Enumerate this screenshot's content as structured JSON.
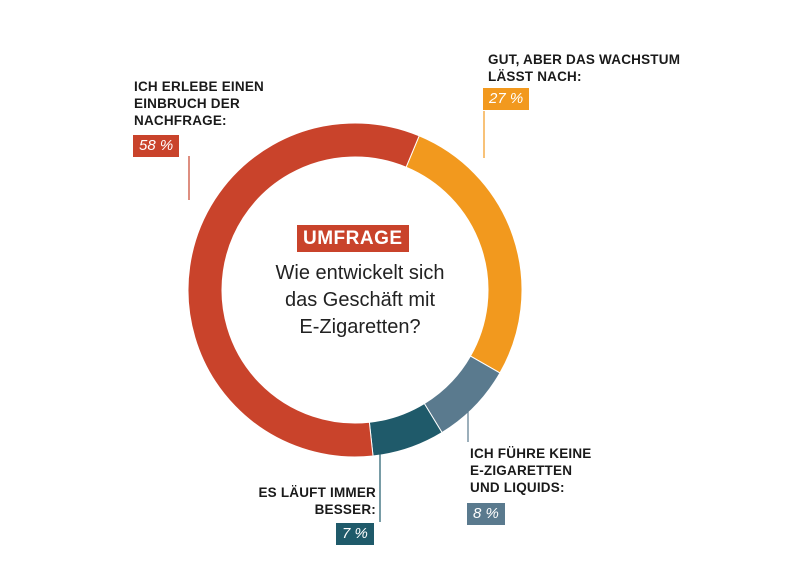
{
  "center": {
    "badge": "UMFRAGE",
    "question_lines": [
      "Wie entwickelt sich",
      "das Geschäft mit",
      "E-Zigaretten?"
    ]
  },
  "chart_data": {
    "type": "pie",
    "variant": "donut",
    "title": "UMFRAGE",
    "subtitle": "Wie entwickelt sich das Geschäft mit E-Zigaretten?",
    "categories": [
      "Gut, aber das Wachstum lässt nach:",
      "Ich führe keine E-Zigaretten und Liquids:",
      "Es läuft immer besser:",
      "Ich erlebe einen Einbruch der Nachfrage:"
    ],
    "values": [
      27,
      8,
      7,
      58
    ],
    "unit": "%",
    "colors": [
      "#f2991e",
      "#5a7a8e",
      "#1f5a6a",
      "#c9432b"
    ],
    "segments": [
      {
        "label_lines": [
          "GUT, ABER DAS WACHSTUM",
          "LÄSST NACH:"
        ],
        "value": 27,
        "value_label": "27 %",
        "color": "#f2991e"
      },
      {
        "label_lines": [
          "ICH FÜHRE KEINE",
          "E-ZIGARETTEN",
          "UND LIQUIDS:"
        ],
        "value": 8,
        "value_label": "8 %",
        "color": "#5a7a8e"
      },
      {
        "label_lines": [
          "ES LÄUFT IMMER",
          "BESSER:"
        ],
        "value": 7,
        "value_label": "7 %",
        "color": "#1f5a6a"
      },
      {
        "label_lines": [
          "ICH ERLEBE EINEN",
          "EINBRUCH DER",
          "NACHFRAGE:"
        ],
        "value": 58,
        "value_label": "58 %",
        "color": "#c9432b"
      }
    ]
  }
}
